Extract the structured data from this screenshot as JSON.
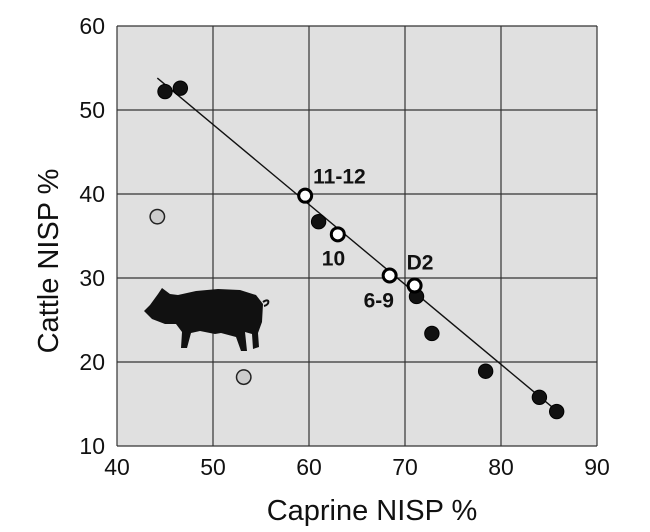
{
  "chart_data": {
    "type": "scatter",
    "title": "",
    "xlabel": "Caprine NISP %",
    "ylabel": "Cattle NISP %",
    "xlim": [
      40,
      90
    ],
    "ylim": [
      10,
      60
    ],
    "xticks": [
      "40",
      "50",
      "60",
      "70",
      "80",
      "90"
    ],
    "yticks": [
      "10",
      "20",
      "30",
      "40",
      "50",
      "60"
    ],
    "grid": true,
    "colors": {
      "plot_background": "#e0e0e0",
      "grid": "#333333",
      "filled_point": "#111111",
      "open_point": "#ffffff",
      "grey_point": "#cccccc",
      "trend_line": "#111111"
    },
    "series": [
      {
        "style": "filled",
        "points": [
          {
            "x": 45.0,
            "y": 52.2
          },
          {
            "x": 46.6,
            "y": 52.6
          },
          {
            "x": 61.0,
            "y": 36.7
          },
          {
            "x": 71.2,
            "y": 27.8
          },
          {
            "x": 72.8,
            "y": 23.4
          },
          {
            "x": 78.4,
            "y": 18.9
          },
          {
            "x": 84.0,
            "y": 15.8
          },
          {
            "x": 85.8,
            "y": 14.1
          }
        ]
      },
      {
        "style": "open",
        "points": [
          {
            "x": 59.6,
            "y": 39.8,
            "label": "11-12"
          },
          {
            "x": 63.0,
            "y": 35.2,
            "label": "10"
          },
          {
            "x": 68.4,
            "y": 30.3,
            "label": "6-9"
          },
          {
            "x": 71.0,
            "y": 29.1,
            "label": "D2"
          }
        ]
      },
      {
        "style": "grey",
        "points": [
          {
            "x": 44.2,
            "y": 37.3
          },
          {
            "x": 53.2,
            "y": 18.2
          }
        ]
      }
    ],
    "trendline": {
      "x": [
        44.2,
        86.0
      ],
      "y": [
        53.8,
        14.0
      ]
    },
    "annotations": {
      "icon": "pig-icon"
    }
  }
}
